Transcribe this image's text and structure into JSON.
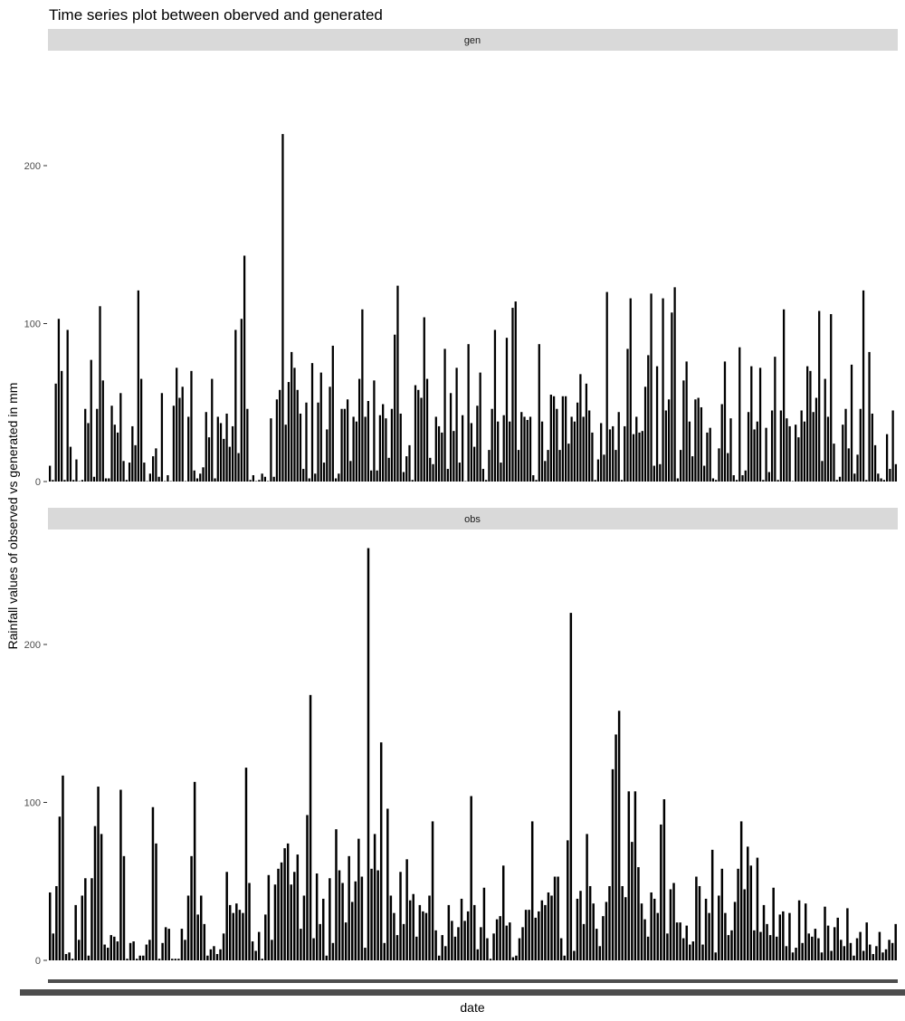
{
  "chart_data": {
    "type": "bar",
    "title": "Time series plot between oberved and generated",
    "xlabel": "date",
    "ylabel": "Rainfall values of observed vs generated in mm",
    "x_tick_labels": "illegible (overplotted)",
    "facets": [
      {
        "name": "gen",
        "ylim": [
          0,
          220
        ],
        "y_ticks": [
          0,
          100,
          200
        ],
        "values": [
          10,
          1,
          62,
          103,
          70,
          1,
          96,
          22,
          1,
          14,
          0,
          1,
          46,
          37,
          77,
          3,
          46,
          111,
          64,
          2,
          2,
          48,
          36,
          31,
          56,
          13,
          1,
          12,
          35,
          23,
          121,
          65,
          12,
          0,
          5,
          16,
          21,
          3,
          56,
          0,
          4,
          0,
          48,
          72,
          53,
          60,
          0,
          41,
          70,
          7,
          2,
          5,
          9,
          44,
          28,
          65,
          2,
          41,
          37,
          27,
          43,
          22,
          35,
          96,
          18,
          103,
          143,
          46,
          1,
          4,
          0,
          1,
          5,
          3,
          0,
          40,
          3,
          52,
          58,
          220,
          36,
          63,
          82,
          72,
          58,
          43,
          8,
          50,
          2,
          75,
          5,
          50,
          69,
          12,
          33,
          60,
          86,
          2,
          5,
          46,
          46,
          52,
          13,
          41,
          38,
          65,
          109,
          41,
          51,
          7,
          64,
          7,
          42,
          49,
          40,
          15,
          46,
          93,
          124,
          43,
          6,
          16,
          23,
          1,
          61,
          58,
          53,
          104,
          65,
          15,
          11,
          41,
          35,
          31,
          84,
          8,
          56,
          32,
          72,
          12,
          42,
          0,
          87,
          37,
          22,
          48,
          69,
          8,
          1,
          20,
          46,
          96,
          38,
          12,
          42,
          91,
          38,
          110,
          114,
          20,
          44,
          41,
          39,
          41,
          4,
          1,
          87,
          38,
          13,
          20,
          55,
          54,
          46,
          20,
          54,
          54,
          24,
          41,
          38,
          50,
          68,
          41,
          62,
          45,
          31,
          1,
          14,
          37,
          17,
          120,
          33,
          35,
          20,
          44,
          1,
          35,
          84,
          116,
          30,
          41,
          31,
          32,
          60,
          80,
          119,
          10,
          73,
          11,
          116,
          45,
          52,
          107,
          123,
          2,
          20,
          64,
          76,
          38,
          16,
          52,
          53,
          47,
          10,
          31,
          34,
          2,
          1,
          21,
          49,
          76,
          18,
          40,
          4,
          1,
          85,
          4,
          7,
          44,
          73,
          33,
          38,
          72,
          1,
          34,
          6,
          45,
          79,
          1,
          45,
          109,
          40,
          35,
          0,
          36,
          28,
          45,
          38,
          73,
          70,
          44,
          53,
          108,
          13,
          65,
          41,
          106,
          24,
          1,
          3,
          36,
          46,
          21,
          74,
          5,
          17,
          46,
          121,
          1,
          82,
          43,
          23,
          5,
          2,
          1,
          30,
          8,
          45,
          11
        ]
      },
      {
        "name": "obs",
        "ylim": [
          0,
          260
        ],
        "y_ticks": [
          0,
          100,
          200
        ],
        "values": [
          43,
          17,
          47,
          91,
          117,
          4,
          5,
          1,
          35,
          13,
          41,
          52,
          3,
          52,
          85,
          110,
          80,
          10,
          8,
          16,
          15,
          12,
          108,
          66,
          1,
          11,
          12,
          1,
          3,
          3,
          10,
          13,
          97,
          74,
          1,
          11,
          21,
          20,
          1,
          1,
          1,
          20,
          13,
          41,
          66,
          113,
          29,
          41,
          23,
          3,
          7,
          9,
          4,
          7,
          17,
          56,
          35,
          30,
          36,
          32,
          30,
          122,
          49,
          12,
          6,
          18,
          1,
          29,
          54,
          13,
          48,
          58,
          62,
          71,
          74,
          48,
          56,
          67,
          20,
          41,
          92,
          168,
          14,
          55,
          23,
          39,
          3,
          52,
          11,
          83,
          57,
          49,
          24,
          66,
          37,
          50,
          77,
          53,
          8,
          261,
          58,
          80,
          57,
          138,
          11,
          96,
          41,
          30,
          16,
          56,
          23,
          64,
          38,
          42,
          15,
          35,
          31,
          30,
          41,
          88,
          19,
          3,
          16,
          9,
          35,
          25,
          15,
          21,
          39,
          25,
          31,
          104,
          35,
          7,
          21,
          46,
          14,
          1,
          17,
          26,
          28,
          60,
          22,
          24,
          2,
          3,
          14,
          21,
          32,
          32,
          88,
          27,
          31,
          38,
          35,
          43,
          41,
          53,
          53,
          14,
          3,
          76,
          220,
          6,
          39,
          44,
          23,
          80,
          47,
          36,
          20,
          9,
          28,
          37,
          47,
          121,
          143,
          158,
          47,
          40,
          107,
          75,
          107,
          59,
          36,
          26,
          15,
          43,
          39,
          30,
          86,
          102,
          17,
          45,
          49,
          24,
          24,
          14,
          22,
          10,
          12,
          53,
          47,
          10,
          39,
          30,
          70,
          5,
          41,
          58,
          30,
          16,
          19,
          37,
          58,
          88,
          45,
          72,
          60,
          19,
          65,
          18,
          35,
          23,
          16,
          46,
          15,
          29,
          31,
          9,
          30,
          5,
          8,
          38,
          11,
          36,
          17,
          15,
          20,
          14,
          5,
          34,
          22,
          6,
          21,
          27,
          13,
          9,
          33,
          11,
          3,
          14,
          18,
          6,
          24,
          10,
          4,
          9,
          18,
          5,
          7,
          13,
          11,
          23
        ]
      }
    ]
  }
}
